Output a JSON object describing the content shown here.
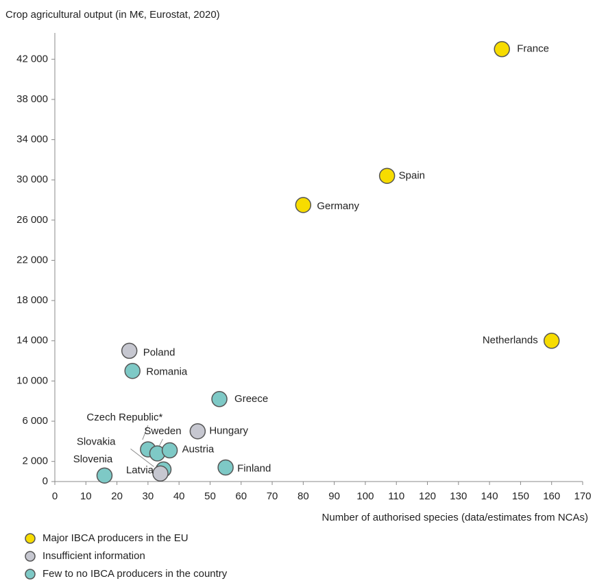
{
  "chart_data": {
    "type": "scatter",
    "ylabel": "Crop agricultural output (in M€, Eurostat, 2020)",
    "xlabel": "Number of authorised species (data/estimates from NCAs)",
    "xlim": [
      0,
      170
    ],
    "xticks": [
      0,
      10,
      20,
      30,
      40,
      50,
      60,
      70,
      80,
      90,
      100,
      110,
      120,
      130,
      140,
      150,
      160,
      170
    ],
    "ylim": [
      0,
      44000
    ],
    "yticks": [
      0,
      {
        "value": 2000,
        "label": "2 000"
      },
      {
        "value": 6000,
        "label": "6 000"
      },
      {
        "value": 10000,
        "label": "10 000"
      },
      {
        "value": 14000,
        "label": "14 000"
      },
      {
        "value": 18000,
        "label": "18 000"
      },
      {
        "value": 22000,
        "label": "22 000"
      },
      {
        "value": 26000,
        "label": "26 000"
      },
      {
        "value": 30000,
        "label": "30 000"
      },
      {
        "value": 34000,
        "label": "34 000"
      },
      {
        "value": 38000,
        "label": "38 000"
      },
      {
        "value": 42000,
        "label": "42 000"
      }
    ],
    "grid": false,
    "legend": "bottom-left",
    "series": [
      {
        "name": "Major IBCA producers in the EU",
        "color": "#f7dc00",
        "labels": [
          "France",
          "Spain",
          "Germany",
          "Netherlands"
        ],
        "x": [
          144,
          107,
          80,
          160
        ],
        "values": [
          43000,
          30400,
          27500,
          14000
        ]
      },
      {
        "name": "Insufficient information",
        "color": "#c6c7d0",
        "labels": [
          "Poland",
          "Hungary",
          "Latvia"
        ],
        "x": [
          24,
          46,
          34
        ],
        "values": [
          13000,
          5000,
          800
        ]
      },
      {
        "name": "Few to no IBCA producers in the country",
        "color": "#7ec9c6",
        "labels": [
          "Romania",
          "Greece",
          "Czech Republic*",
          "Sweden",
          "Austria",
          "Slovakia",
          "Slovenia",
          "Finland"
        ],
        "x": [
          25,
          53,
          30,
          33,
          37,
          35,
          16,
          55
        ],
        "values": [
          11000,
          8200,
          3200,
          2800,
          3100,
          1200,
          600,
          1400
        ]
      }
    ]
  }
}
